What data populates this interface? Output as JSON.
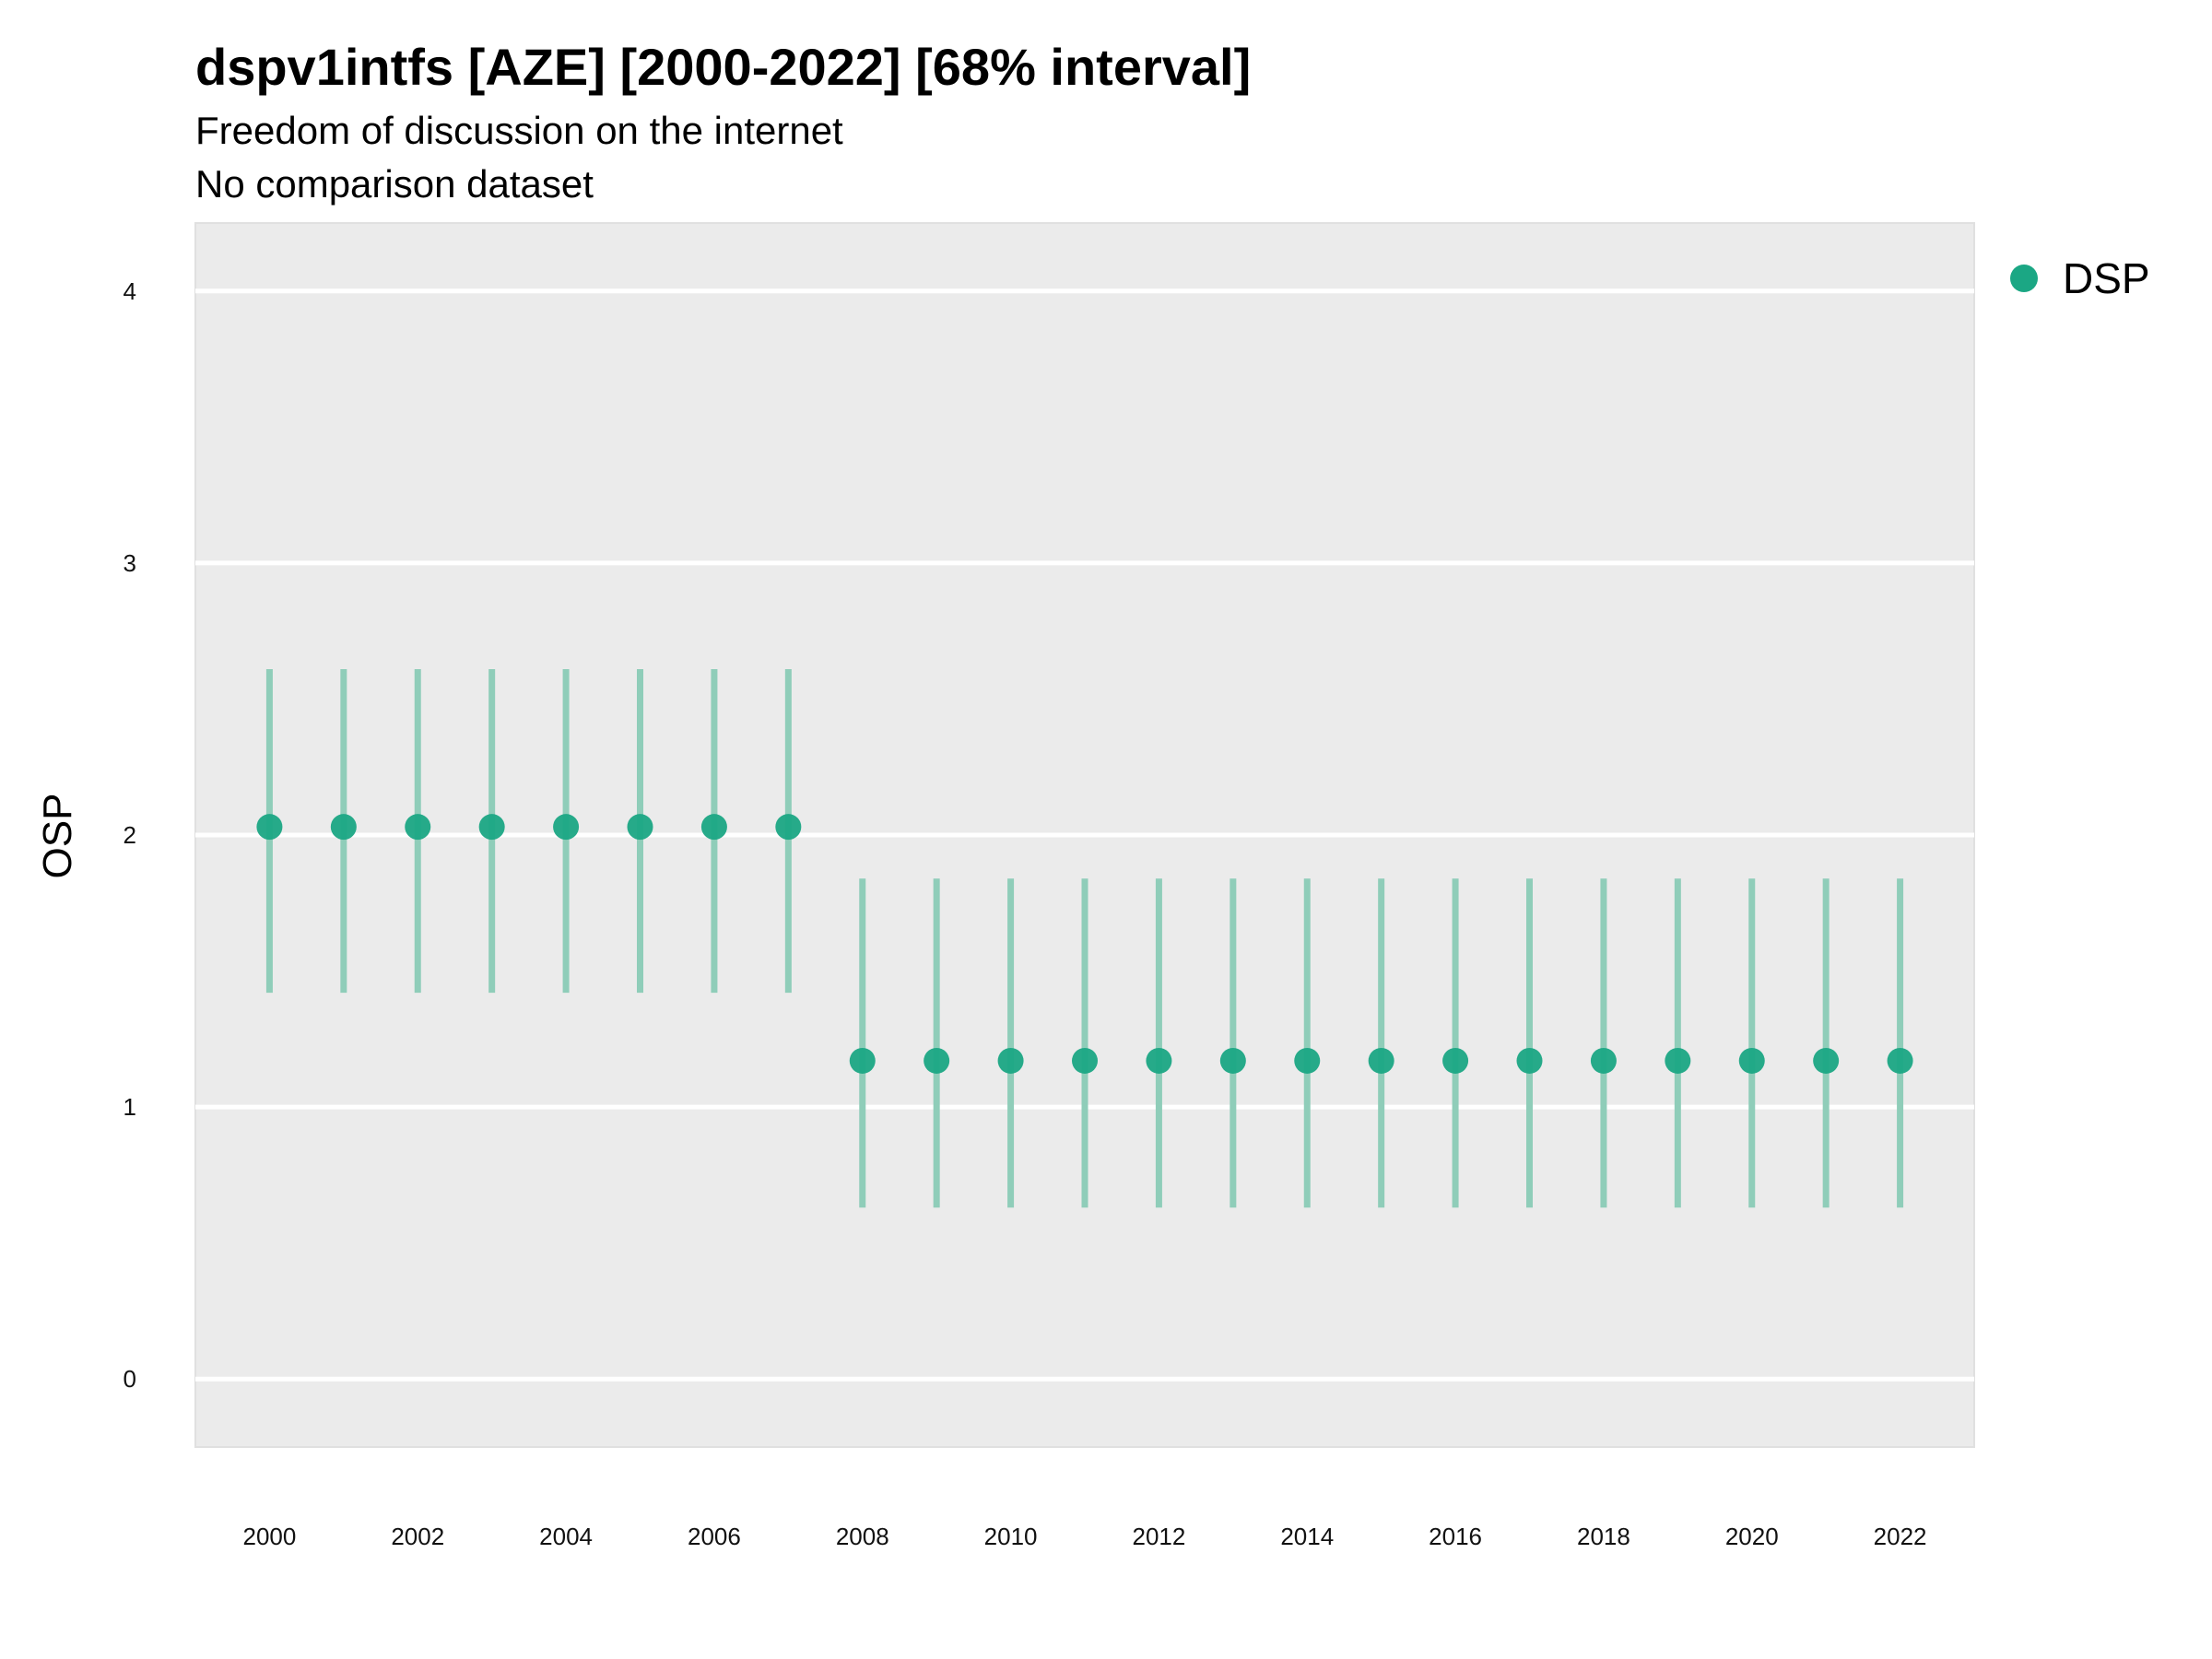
{
  "chart_data": {
    "type": "scatter",
    "title": "dspv1intfs [AZE] [2000-2022] [68% interval]",
    "subtitle": "Freedom of discussion on the internet",
    "subtitle2": "No comparison dataset",
    "xlabel": "",
    "ylabel": "OSP",
    "xlim": [
      1999,
      2023
    ],
    "ylim": [
      -0.25,
      4.25
    ],
    "x_ticks": [
      2000,
      2002,
      2004,
      2006,
      2008,
      2010,
      2012,
      2014,
      2016,
      2018,
      2020,
      2022
    ],
    "y_ticks": [
      0,
      1,
      2,
      3,
      4
    ],
    "grid": true,
    "legend_position": "right",
    "series": [
      {
        "name": "DSP",
        "color": "#1BA784",
        "x": [
          2000,
          2001,
          2002,
          2003,
          2004,
          2005,
          2006,
          2007,
          2008,
          2009,
          2010,
          2011,
          2012,
          2013,
          2014,
          2015,
          2016,
          2017,
          2018,
          2019,
          2020,
          2021,
          2022
        ],
        "y": [
          2.03,
          2.03,
          2.03,
          2.03,
          2.03,
          2.03,
          2.03,
          2.03,
          1.17,
          1.17,
          1.17,
          1.17,
          1.17,
          1.17,
          1.17,
          1.17,
          1.17,
          1.17,
          1.17,
          1.17,
          1.17,
          1.17,
          1.17
        ],
        "lower": [
          1.42,
          1.42,
          1.42,
          1.42,
          1.42,
          1.42,
          1.42,
          1.42,
          0.63,
          0.63,
          0.63,
          0.63,
          0.63,
          0.63,
          0.63,
          0.63,
          0.63,
          0.63,
          0.63,
          0.63,
          0.63,
          0.63,
          0.63
        ],
        "upper": [
          2.61,
          2.61,
          2.61,
          2.61,
          2.61,
          2.61,
          2.61,
          2.61,
          1.84,
          1.84,
          1.84,
          1.84,
          1.84,
          1.84,
          1.84,
          1.84,
          1.84,
          1.84,
          1.84,
          1.84,
          1.84,
          1.84,
          1.84
        ]
      }
    ]
  },
  "colors": {
    "panel_background": "#EBEBEB",
    "gridline": "#FFFFFF",
    "interval_line": "#8FCDB9",
    "point": "#1BA784"
  }
}
